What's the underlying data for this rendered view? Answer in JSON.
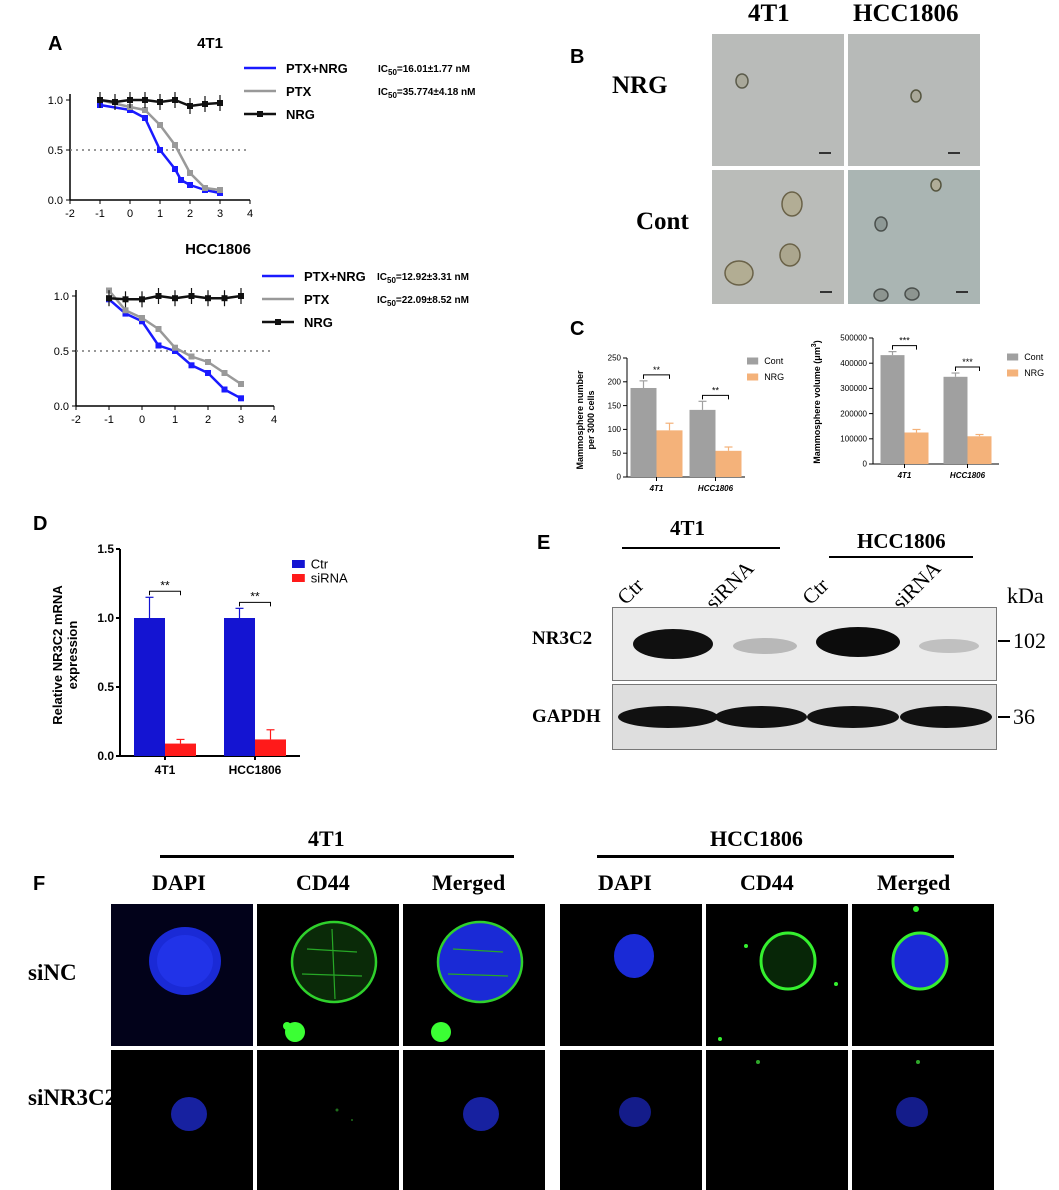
{
  "panel_letters": {
    "a": "A",
    "b": "B",
    "c": "C",
    "d": "D",
    "e": "E",
    "f": "F"
  },
  "chart_data": [
    {
      "id": "A1",
      "type": "line",
      "title": "4T1",
      "xlim": [
        -2,
        4
      ],
      "ylim": [
        0,
        1.0
      ],
      "xticks": [
        -2,
        -1,
        0,
        1,
        2,
        3,
        4
      ],
      "yticks": [
        0.0,
        0.5,
        1.0
      ],
      "xticklabels": [
        "-2",
        "-1",
        "0",
        "1",
        "2",
        "3",
        "4"
      ],
      "yticklabels": [
        "0.0",
        "0.5",
        "1.0"
      ],
      "reference_line": 0.5,
      "series": [
        {
          "name": "PTX+NRG",
          "color": "#1a1aff",
          "ic50": "IC50=16.01±1.77 nM",
          "x": [
            -1,
            0,
            0.5,
            1,
            1.5,
            1.7,
            2,
            2.5,
            3
          ],
          "y": [
            0.95,
            0.9,
            0.82,
            0.5,
            0.31,
            0.2,
            0.15,
            0.1,
            0.07
          ]
        },
        {
          "name": "PTX",
          "color": "#999999",
          "ic50": "IC50=35.774±4.18 nM",
          "x": [
            -1,
            0,
            0.5,
            1,
            1.5,
            2,
            2.5,
            3
          ],
          "y": [
            1.0,
            0.93,
            0.9,
            0.75,
            0.55,
            0.27,
            0.12,
            0.1
          ]
        },
        {
          "name": "NRG",
          "color": "#111111",
          "ic50": "",
          "x": [
            -1,
            -0.5,
            0,
            0.5,
            1,
            1.5,
            2,
            2.5,
            3
          ],
          "y": [
            1.0,
            0.98,
            1.0,
            1.0,
            0.98,
            1.0,
            0.94,
            0.96,
            0.97
          ]
        }
      ]
    },
    {
      "id": "A2",
      "type": "line",
      "title": "HCC1806",
      "xlim": [
        -2,
        4
      ],
      "ylim": [
        0,
        1.0
      ],
      "xticks": [
        -2,
        -1,
        0,
        1,
        2,
        3,
        4
      ],
      "yticks": [
        0.0,
        0.5,
        1.0
      ],
      "xticklabels": [
        "-2",
        "-1",
        "0",
        "1",
        "2",
        "3",
        "4"
      ],
      "yticklabels": [
        "0.0",
        "0.5",
        "1.0"
      ],
      "reference_line": 0.5,
      "series": [
        {
          "name": "PTX+NRG",
          "color": "#1a1aff",
          "ic50": "IC50=12.92±3.31 nM",
          "x": [
            -1,
            -0.5,
            0,
            0.5,
            1,
            1.5,
            2,
            2.5,
            3
          ],
          "y": [
            0.97,
            0.84,
            0.77,
            0.55,
            0.5,
            0.37,
            0.3,
            0.15,
            0.07
          ]
        },
        {
          "name": "PTX",
          "color": "#999999",
          "ic50": "IC50=22.09±8.52 nM",
          "x": [
            -1,
            -0.5,
            0,
            0.5,
            1,
            1.5,
            2,
            2.5,
            3
          ],
          "y": [
            1.05,
            0.87,
            0.8,
            0.7,
            0.53,
            0.45,
            0.4,
            0.3,
            0.2
          ]
        },
        {
          "name": "NRG",
          "color": "#111111",
          "ic50": "",
          "x": [
            -1,
            -0.5,
            0,
            0.5,
            1,
            1.5,
            2,
            2.5,
            3
          ],
          "y": [
            0.98,
            0.97,
            0.97,
            1.0,
            0.98,
            1.0,
            0.98,
            0.98,
            1.0
          ]
        }
      ]
    },
    {
      "id": "C1",
      "type": "bar",
      "ylabel_lines": [
        "Mammosphere number",
        "per 3000 cells"
      ],
      "categories": [
        "4T1",
        "HCC1806"
      ],
      "ylim": [
        0,
        250
      ],
      "yticks": [
        0,
        50,
        100,
        150,
        200,
        250
      ],
      "yticklabels": [
        "0",
        "50",
        "100",
        "150",
        "200",
        "250"
      ],
      "series": [
        {
          "name": "Cont",
          "color": "#a0a0a0",
          "values": [
            187,
            141
          ],
          "errors": [
            15,
            18
          ]
        },
        {
          "name": "NRG",
          "color": "#f4b27a",
          "values": [
            98,
            55
          ],
          "errors": [
            15,
            8
          ]
        }
      ],
      "significance": [
        "**",
        "**"
      ]
    },
    {
      "id": "C2",
      "type": "bar",
      "ylabel_text": "Mammosphere volume (μm",
      "ylabel_sup": "3",
      "ylabel_end": ")",
      "categories": [
        "4T1",
        "HCC1806"
      ],
      "ylim": [
        0,
        500000
      ],
      "yticks": [
        0,
        100000,
        200000,
        300000,
        400000,
        500000
      ],
      "yticklabels": [
        "0",
        "100000",
        "200000",
        "300000",
        "400000",
        "500000"
      ],
      "series": [
        {
          "name": "Cont",
          "color": "#a0a0a0",
          "values": [
            432000,
            346000
          ],
          "errors": [
            14000,
            15000
          ]
        },
        {
          "name": "NRG",
          "color": "#f4b27a",
          "values": [
            125000,
            110000
          ],
          "errors": [
            12000,
            7000
          ]
        }
      ],
      "significance": [
        "***",
        "***"
      ]
    },
    {
      "id": "D",
      "type": "bar",
      "ylabel_lines": [
        "Relative NR3C2 mRNA",
        "expression"
      ],
      "categories": [
        "4T1",
        "HCC1806"
      ],
      "ylim": [
        0,
        1.5
      ],
      "yticks": [
        0.0,
        0.5,
        1.0,
        1.5
      ],
      "yticklabels": [
        "0.0",
        "0.5",
        "1.0",
        "1.5"
      ],
      "series": [
        {
          "name": "Ctr",
          "color": "#1414d2",
          "values": [
            1.0,
            1.0
          ],
          "errors": [
            0.15,
            0.07
          ]
        },
        {
          "name": "siRNA",
          "color": "#ff1a1a",
          "values": [
            0.09,
            0.12
          ],
          "errors": [
            0.03,
            0.07
          ]
        }
      ],
      "significance": [
        "**",
        "**"
      ]
    }
  ],
  "panel_b": {
    "col1": "4T1",
    "col2": "HCC1806",
    "row1": "NRG",
    "row2": "Cont"
  },
  "panel_e": {
    "group1": "4T1",
    "group2": "HCC1806",
    "lanes": [
      "Ctr",
      "siRNA",
      "Ctr",
      "siRNA"
    ],
    "kda": "kDa",
    "row1": "NR3C2",
    "row2": "GAPDH",
    "mw1": "102",
    "mw2": "36"
  },
  "panel_f": {
    "group1": "4T1",
    "group2": "HCC1806",
    "cols": [
      "DAPI",
      "CD44",
      "Merged",
      "DAPI",
      "CD44",
      "Merged"
    ],
    "row1": "siNC",
    "row2": "siNR3C2"
  }
}
